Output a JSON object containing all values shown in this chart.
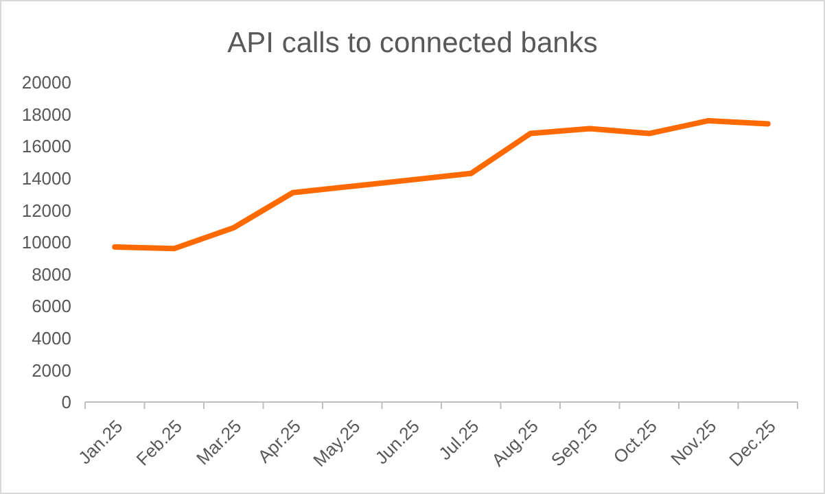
{
  "chart_data": {
    "type": "line",
    "title": "API calls to connected banks",
    "categories": [
      "Jan.25",
      "Feb.25",
      "Mar.25",
      "Apr.25",
      "May.25",
      "Jun.25",
      "Jul.25",
      "Aug.25",
      "Sep.25",
      "Oct.25",
      "Nov.25",
      "Dec.25"
    ],
    "series": [
      {
        "color": "#ff6a00",
        "values": [
          9700,
          9600,
          10900,
          13100,
          13500,
          13900,
          14300,
          16800,
          17100,
          16800,
          17600,
          17400
        ]
      }
    ],
    "ylim": [
      0,
      20000
    ],
    "yticks": [
      0,
      2000,
      4000,
      6000,
      8000,
      10000,
      12000,
      14000,
      16000,
      18000,
      20000
    ],
    "marker": "none",
    "line_style": "solid"
  }
}
